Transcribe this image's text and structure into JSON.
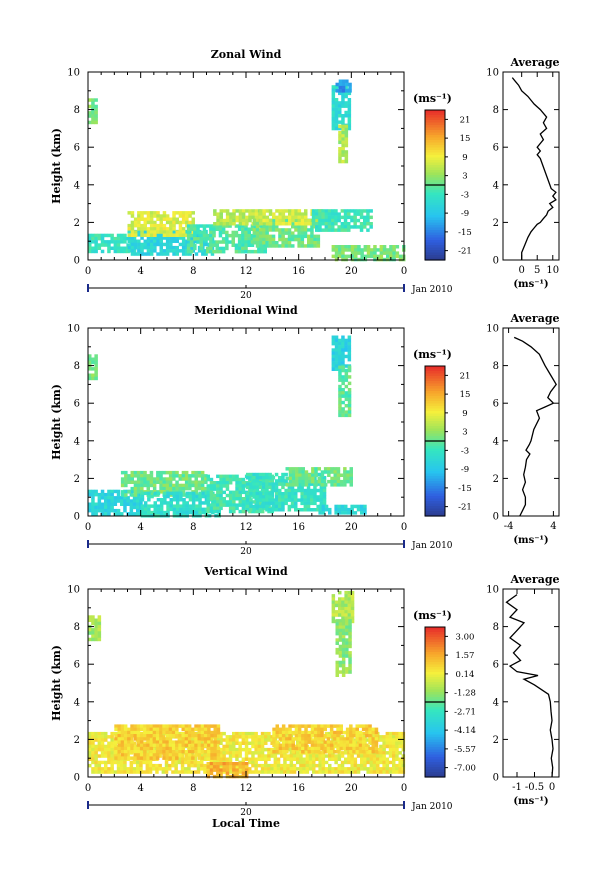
{
  "chart_data": [
    {
      "type": "heatmap",
      "title": "Zonal Wind",
      "ylabel": "Height (km)",
      "ylim": [
        0,
        10
      ],
      "y_ticks": [
        "0",
        "2",
        "4",
        "6",
        "8",
        "10"
      ],
      "xlim": [
        0,
        24
      ],
      "x_ticks": [
        "0",
        "4",
        "8",
        "12",
        "16",
        "20",
        "0"
      ],
      "date_label": "20",
      "month_label": "Jan 2010",
      "colorbar": {
        "unit": "(ms⁻¹)",
        "labels": [
          "21",
          "15",
          "9",
          "3",
          "-3",
          "-9",
          "-15",
          "-21"
        ],
        "min": -24,
        "max": 24
      },
      "patches": [
        {
          "x0": 0.0,
          "x1": 0.7,
          "y0": 7.4,
          "y1": 8.6,
          "v": 2
        },
        {
          "x0": 0.0,
          "x1": 3.5,
          "y0": 0.5,
          "y1": 1.4,
          "v": -3
        },
        {
          "x0": 3.0,
          "x1": 9.5,
          "y0": 0.3,
          "y1": 1.6,
          "v": -6
        },
        {
          "x0": 3.0,
          "x1": 8.0,
          "y0": 1.4,
          "y1": 2.6,
          "v": 8
        },
        {
          "x0": 7.5,
          "x1": 13.5,
          "y0": 0.5,
          "y1": 1.9,
          "v": -1
        },
        {
          "x0": 9.5,
          "x1": 13.0,
          "y0": 1.9,
          "y1": 2.7,
          "v": 6
        },
        {
          "x0": 12.5,
          "x1": 17.5,
          "y0": 0.8,
          "y1": 2.2,
          "v": 1
        },
        {
          "x0": 13.0,
          "x1": 18.0,
          "y0": 2.0,
          "y1": 2.7,
          "v": 7
        },
        {
          "x0": 17.0,
          "x1": 21.5,
          "y0": 1.6,
          "y1": 2.7,
          "v": -2
        },
        {
          "x0": 18.5,
          "x1": 24.0,
          "y0": 0.0,
          "y1": 0.8,
          "v": 2
        },
        {
          "x0": 18.5,
          "x1": 19.8,
          "y0": 7.0,
          "y1": 9.3,
          "v": -5
        },
        {
          "x0": 18.8,
          "x1": 19.8,
          "y0": 9.0,
          "y1": 9.6,
          "v": -13
        },
        {
          "x0": 19.0,
          "x1": 19.7,
          "y0": 5.3,
          "y1": 7.2,
          "v": 5
        }
      ],
      "average": {
        "title": "Average",
        "xlabel": "(ms⁻¹)",
        "xlim": [
          -6,
          12
        ],
        "x_ticks": [
          "0",
          "5",
          "10"
        ],
        "ylim": [
          0,
          10
        ],
        "y_ticks": [
          "0",
          "2",
          "4",
          "6",
          "8",
          "10"
        ],
        "profile": [
          [
            0,
            0.0
          ],
          [
            0,
            0.4
          ],
          [
            1,
            0.8
          ],
          [
            2,
            1.2
          ],
          [
            3,
            1.5
          ],
          [
            4,
            1.7
          ],
          [
            5,
            1.9
          ],
          [
            6,
            2.0
          ],
          [
            7,
            2.2
          ],
          [
            8,
            2.4
          ],
          [
            8.5,
            2.6
          ],
          [
            10,
            2.8
          ],
          [
            9,
            3.0
          ],
          [
            11,
            3.2
          ],
          [
            10,
            3.4
          ],
          [
            11,
            3.6
          ],
          [
            9.5,
            3.8
          ],
          [
            6,
            5.4
          ],
          [
            5,
            5.6
          ],
          [
            6,
            5.8
          ],
          [
            5,
            6.0
          ],
          [
            7,
            6.4
          ],
          [
            6,
            6.7
          ],
          [
            8,
            7.0
          ],
          [
            7,
            7.3
          ],
          [
            8,
            7.6
          ],
          [
            6,
            8.0
          ],
          [
            4,
            8.3
          ],
          [
            2,
            8.7
          ],
          [
            0,
            9.0
          ],
          [
            -1,
            9.3
          ],
          [
            -2,
            9.5
          ],
          [
            -3,
            9.7
          ]
        ]
      }
    },
    {
      "type": "heatmap",
      "title": "Meridional Wind",
      "ylabel": "Height (km)",
      "ylim": [
        0,
        10
      ],
      "y_ticks": [
        "0",
        "2",
        "4",
        "6",
        "8",
        "10"
      ],
      "xlim": [
        0,
        24
      ],
      "x_ticks": [
        "0",
        "4",
        "8",
        "12",
        "16",
        "20",
        "0"
      ],
      "date_label": "20",
      "month_label": "Jan 2010",
      "colorbar": {
        "unit": "(ms⁻¹)",
        "labels": [
          "21",
          "15",
          "9",
          "3",
          "-3",
          "-9",
          "-15",
          "-21"
        ],
        "min": -24,
        "max": 24
      },
      "patches": [
        {
          "x0": 0.0,
          "x1": 0.7,
          "y0": 7.4,
          "y1": 8.6,
          "v": 2
        },
        {
          "x0": 0.0,
          "x1": 4.0,
          "y0": 0.1,
          "y1": 1.4,
          "v": -6
        },
        {
          "x0": 2.5,
          "x1": 9.0,
          "y0": 1.2,
          "y1": 2.4,
          "v": 1
        },
        {
          "x0": 4.0,
          "x1": 10.0,
          "y0": 0.1,
          "y1": 1.3,
          "v": -4
        },
        {
          "x0": 9.0,
          "x1": 14.0,
          "y0": 0.2,
          "y1": 2.2,
          "v": -2
        },
        {
          "x0": 12.0,
          "x1": 18.0,
          "y0": 0.4,
          "y1": 2.3,
          "v": -3
        },
        {
          "x0": 15.0,
          "x1": 20.0,
          "y0": 1.6,
          "y1": 2.6,
          "v": 1
        },
        {
          "x0": 17.5,
          "x1": 21.0,
          "y0": 0.1,
          "y1": 0.6,
          "v": -6
        },
        {
          "x0": 18.5,
          "x1": 19.8,
          "y0": 7.8,
          "y1": 9.6,
          "v": -7
        },
        {
          "x0": 19.0,
          "x1": 19.8,
          "y0": 5.3,
          "y1": 8.0,
          "v": 0
        }
      ],
      "average": {
        "title": "Average",
        "xlabel": "(ms⁻¹)",
        "xlim": [
          -5,
          5
        ],
        "x_ticks": [
          "-4",
          "4"
        ],
        "ylim": [
          0,
          10
        ],
        "y_ticks": [
          "0",
          "2",
          "4",
          "6",
          "8",
          "10"
        ],
        "profile": [
          [
            -2,
            0.0
          ],
          [
            -1.5,
            0.3
          ],
          [
            -1,
            0.6
          ],
          [
            -1,
            1.0
          ],
          [
            -1.5,
            1.4
          ],
          [
            -1,
            1.8
          ],
          [
            -1.3,
            2.2
          ],
          [
            -1,
            2.6
          ],
          [
            -0.8,
            3.0
          ],
          [
            -0.2,
            3.3
          ],
          [
            -0.9,
            3.5
          ],
          [
            -0.3,
            3.8
          ],
          [
            0,
            4.0
          ],
          [
            0.5,
            4.6
          ],
          [
            1.5,
            5.2
          ],
          [
            1,
            5.6
          ],
          [
            2.5,
            5.8
          ],
          [
            4,
            6.0
          ],
          [
            3,
            6.3
          ],
          [
            3.5,
            6.6
          ],
          [
            4.5,
            7.0
          ],
          [
            3.5,
            7.5
          ],
          [
            2.5,
            8.0
          ],
          [
            1.5,
            8.6
          ],
          [
            0,
            9.0
          ],
          [
            -1.5,
            9.3
          ],
          [
            -3,
            9.5
          ]
        ]
      }
    },
    {
      "type": "heatmap",
      "title": "Vertical Wind",
      "ylabel": "Height (km)",
      "xlabel": "Local Time",
      "ylim": [
        0,
        10
      ],
      "y_ticks": [
        "0",
        "2",
        "4",
        "6",
        "8",
        "10"
      ],
      "xlim": [
        0,
        24
      ],
      "x_ticks": [
        "0",
        "4",
        "8",
        "12",
        "16",
        "20",
        "0"
      ],
      "date_label": "20",
      "month_label": "Jan 2010",
      "colorbar": {
        "unit": "(ms⁻¹)",
        "labels": [
          "3.00",
          "1.57",
          "0.14",
          "-1.28",
          "-2.71",
          "-4.14",
          "-5.57",
          "-7.00"
        ],
        "min": -7.7,
        "max": 3.7
      },
      "patches": [
        {
          "x0": 0.0,
          "x1": 0.8,
          "y0": 7.4,
          "y1": 8.6,
          "v": -1.0
        },
        {
          "x0": 0.0,
          "x1": 24.0,
          "y0": 0.2,
          "y1": 2.4,
          "v": 0.3
        },
        {
          "x0": 2.0,
          "x1": 10.0,
          "y0": 1.0,
          "y1": 2.8,
          "v": 0.9
        },
        {
          "x0": 9.0,
          "x1": 12.0,
          "y0": 0.0,
          "y1": 0.8,
          "v": 1.5
        },
        {
          "x0": 14.0,
          "x1": 22.0,
          "y0": 1.4,
          "y1": 2.8,
          "v": 0.9
        },
        {
          "x0": 18.5,
          "x1": 20.2,
          "y0": 8.2,
          "y1": 9.9,
          "v": -0.8
        },
        {
          "x0": 18.8,
          "x1": 19.8,
          "y0": 5.4,
          "y1": 8.4,
          "v": -1.3
        }
      ],
      "average": {
        "title": "Average",
        "xlabel": "(ms⁻¹)",
        "xlim": [
          -1.4,
          0.2
        ],
        "x_ticks": [
          "-1",
          "-0.5",
          "0"
        ],
        "ylim": [
          0,
          10
        ],
        "y_ticks": [
          "0",
          "2",
          "4",
          "6",
          "8",
          "10"
        ],
        "profile": [
          [
            0,
            0.0
          ],
          [
            0.02,
            0.5
          ],
          [
            -0.02,
            1.0
          ],
          [
            0.03,
            1.5
          ],
          [
            0,
            2.0
          ],
          [
            -0.05,
            2.5
          ],
          [
            0,
            3.0
          ],
          [
            -0.03,
            3.5
          ],
          [
            -0.05,
            4.0
          ],
          [
            -0.1,
            4.4
          ],
          [
            -0.5,
            4.9
          ],
          [
            -0.8,
            5.2
          ],
          [
            -0.4,
            5.4
          ],
          [
            -1.0,
            5.6
          ],
          [
            -1.2,
            5.9
          ],
          [
            -0.9,
            6.2
          ],
          [
            -1.1,
            6.6
          ],
          [
            -0.9,
            7.0
          ],
          [
            -1.2,
            7.4
          ],
          [
            -1.0,
            7.8
          ],
          [
            -0.8,
            8.2
          ],
          [
            -1.2,
            8.5
          ],
          [
            -1.0,
            8.9
          ],
          [
            -1.3,
            9.3
          ],
          [
            -1.0,
            9.7
          ]
        ]
      }
    }
  ]
}
